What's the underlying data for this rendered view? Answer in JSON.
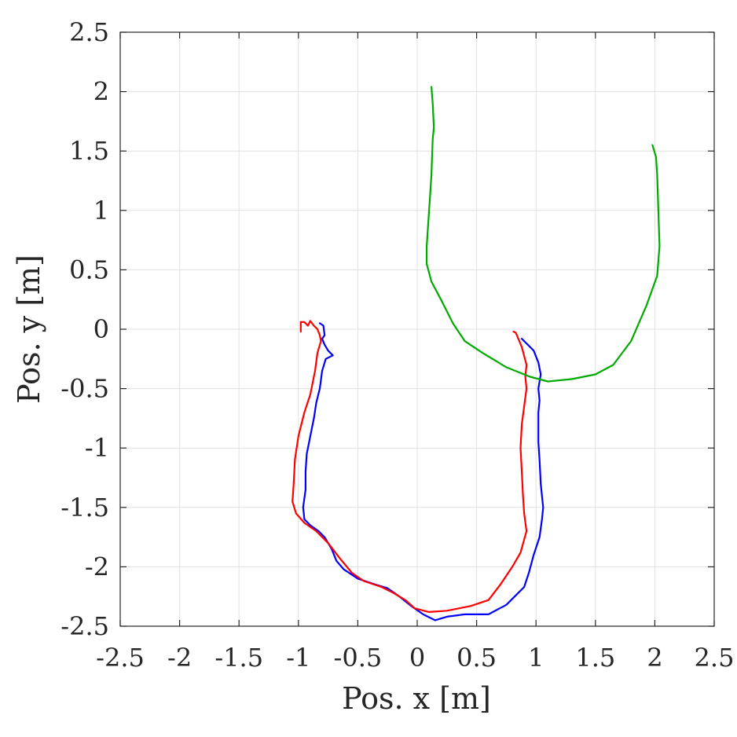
{
  "chart_data": {
    "type": "line",
    "title": "",
    "xlabel": "Pos. x [m]",
    "ylabel": "Pos. y [m]",
    "xlim": [
      -2.5,
      2.5
    ],
    "ylim": [
      -2.5,
      2.5
    ],
    "xticks": [
      -2.5,
      -2,
      -1.5,
      -1,
      -0.5,
      0,
      0.5,
      1,
      1.5,
      2,
      2.5
    ],
    "yticks": [
      -2.5,
      -2,
      -1.5,
      -1,
      -0.5,
      0,
      0.5,
      1,
      1.5,
      2,
      2.5
    ],
    "xtick_labels": [
      "-2.5",
      "-2",
      "-1.5",
      "-1",
      "-0.5",
      "0",
      "0.5",
      "1",
      "1.5",
      "2",
      "2.5"
    ],
    "ytick_labels": [
      "-2.5",
      "-2",
      "-1.5",
      "-1",
      "-0.5",
      "0",
      "0.5",
      "1",
      "1.5",
      "2",
      "2.5"
    ],
    "grid": true,
    "legend": "none",
    "series": [
      {
        "color": "#0000ff",
        "points": [
          [
            -0.82,
            0.05
          ],
          [
            -0.79,
            0.03
          ],
          [
            -0.78,
            -0.05
          ],
          [
            -0.8,
            -0.08
          ],
          [
            -0.78,
            -0.13
          ],
          [
            -0.75,
            -0.18
          ],
          [
            -0.71,
            -0.22
          ],
          [
            -0.77,
            -0.25
          ],
          [
            -0.8,
            -0.35
          ],
          [
            -0.82,
            -0.5
          ],
          [
            -0.85,
            -0.62
          ],
          [
            -0.87,
            -0.75
          ],
          [
            -0.9,
            -0.9
          ],
          [
            -0.93,
            -1.05
          ],
          [
            -0.94,
            -1.2
          ],
          [
            -0.94,
            -1.35
          ],
          [
            -0.96,
            -1.5
          ],
          [
            -0.95,
            -1.6
          ],
          [
            -0.9,
            -1.65
          ],
          [
            -0.83,
            -1.7
          ],
          [
            -0.78,
            -1.75
          ],
          [
            -0.72,
            -1.85
          ],
          [
            -0.68,
            -1.95
          ],
          [
            -0.62,
            -2.02
          ],
          [
            -0.5,
            -2.1
          ],
          [
            -0.35,
            -2.15
          ],
          [
            -0.25,
            -2.18
          ],
          [
            -0.15,
            -2.25
          ],
          [
            -0.05,
            -2.33
          ],
          [
            0.05,
            -2.4
          ],
          [
            0.15,
            -2.45
          ],
          [
            0.25,
            -2.42
          ],
          [
            0.4,
            -2.4
          ],
          [
            0.6,
            -2.4
          ],
          [
            0.75,
            -2.32
          ],
          [
            0.82,
            -2.25
          ],
          [
            0.9,
            -2.17
          ],
          [
            0.94,
            -2.05
          ],
          [
            0.98,
            -1.9
          ],
          [
            1.03,
            -1.75
          ],
          [
            1.05,
            -1.6
          ],
          [
            1.06,
            -1.5
          ],
          [
            1.04,
            -1.3
          ],
          [
            1.03,
            -1.1
          ],
          [
            1.02,
            -0.95
          ],
          [
            1.02,
            -0.85
          ],
          [
            1.02,
            -0.7
          ],
          [
            1.03,
            -0.6
          ],
          [
            1.02,
            -0.5
          ],
          [
            1.04,
            -0.38
          ],
          [
            1.02,
            -0.28
          ],
          [
            0.98,
            -0.18
          ],
          [
            0.92,
            -0.12
          ],
          [
            0.88,
            -0.08
          ]
        ]
      },
      {
        "color": "#ff0000",
        "points": [
          [
            -0.98,
            -0.02
          ],
          [
            -0.98,
            0.06
          ],
          [
            -0.95,
            0.06
          ],
          [
            -0.92,
            0.03
          ],
          [
            -0.9,
            0.07
          ],
          [
            -0.87,
            0.03
          ],
          [
            -0.84,
            0.0
          ],
          [
            -0.82,
            -0.05
          ],
          [
            -0.81,
            -0.1
          ],
          [
            -0.84,
            -0.2
          ],
          [
            -0.86,
            -0.35
          ],
          [
            -0.9,
            -0.55
          ],
          [
            -0.95,
            -0.7
          ],
          [
            -1.0,
            -0.9
          ],
          [
            -1.03,
            -1.1
          ],
          [
            -1.04,
            -1.3
          ],
          [
            -1.05,
            -1.45
          ],
          [
            -1.02,
            -1.55
          ],
          [
            -0.95,
            -1.63
          ],
          [
            -0.85,
            -1.7
          ],
          [
            -0.75,
            -1.8
          ],
          [
            -0.65,
            -1.93
          ],
          [
            -0.55,
            -2.05
          ],
          [
            -0.45,
            -2.12
          ],
          [
            -0.3,
            -2.17
          ],
          [
            -0.2,
            -2.22
          ],
          [
            -0.1,
            -2.28
          ],
          [
            -0.02,
            -2.35
          ],
          [
            0.1,
            -2.38
          ],
          [
            0.25,
            -2.37
          ],
          [
            0.45,
            -2.33
          ],
          [
            0.6,
            -2.28
          ],
          [
            0.7,
            -2.15
          ],
          [
            0.8,
            -2.0
          ],
          [
            0.87,
            -1.88
          ],
          [
            0.92,
            -1.7
          ],
          [
            0.9,
            -1.55
          ],
          [
            0.89,
            -1.4
          ],
          [
            0.88,
            -1.2
          ],
          [
            0.87,
            -1.0
          ],
          [
            0.88,
            -0.8
          ],
          [
            0.9,
            -0.65
          ],
          [
            0.92,
            -0.5
          ],
          [
            0.91,
            -0.4
          ],
          [
            0.92,
            -0.3
          ],
          [
            0.88,
            -0.15
          ],
          [
            0.83,
            -0.03
          ],
          [
            0.81,
            -0.02
          ]
        ]
      },
      {
        "color": "#00aa00",
        "points": [
          [
            0.12,
            2.04
          ],
          [
            0.13,
            1.9
          ],
          [
            0.14,
            1.7
          ],
          [
            0.13,
            1.6
          ],
          [
            0.12,
            1.3
          ],
          [
            0.1,
            1.0
          ],
          [
            0.08,
            0.7
          ],
          [
            0.08,
            0.55
          ],
          [
            0.12,
            0.4
          ],
          [
            0.2,
            0.25
          ],
          [
            0.3,
            0.05
          ],
          [
            0.4,
            -0.1
          ],
          [
            0.55,
            -0.2
          ],
          [
            0.75,
            -0.32
          ],
          [
            0.95,
            -0.4
          ],
          [
            1.1,
            -0.44
          ],
          [
            1.3,
            -0.42
          ],
          [
            1.5,
            -0.38
          ],
          [
            1.65,
            -0.3
          ],
          [
            1.8,
            -0.1
          ],
          [
            1.93,
            0.2
          ],
          [
            2.02,
            0.45
          ],
          [
            2.04,
            0.7
          ],
          [
            2.03,
            1.0
          ],
          [
            2.02,
            1.3
          ],
          [
            2.01,
            1.45
          ],
          [
            1.98,
            1.55
          ]
        ]
      }
    ]
  }
}
